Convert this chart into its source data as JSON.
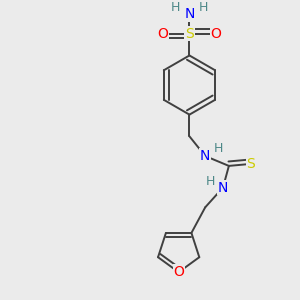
{
  "bg_color": "#ebebeb",
  "atom_colors": {
    "C": "#000000",
    "H": "#4d8888",
    "N": "#0000ff",
    "O": "#ff0000",
    "S": "#cccc00"
  },
  "bond_color": "#404040",
  "bond_width": 1.4,
  "font_size_atoms": 10,
  "font_size_H": 9,
  "figsize": [
    3.0,
    3.0
  ],
  "dpi": 100
}
